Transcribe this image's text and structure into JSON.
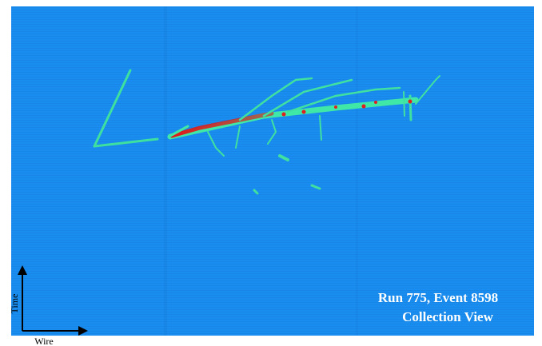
{
  "display": {
    "run_label": "Run 775, Event 8598",
    "view_label": "Collection View",
    "y_axis_label": "Time",
    "x_axis_label": "Wire"
  }
}
